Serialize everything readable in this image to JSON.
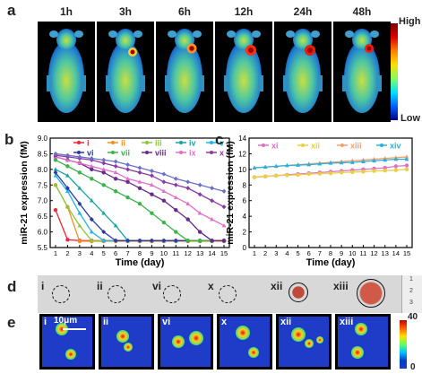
{
  "panel_a": {
    "letter": "a",
    "timepoints": [
      "1h",
      "3h",
      "6h",
      "12h",
      "24h",
      "48h"
    ],
    "colorbar": {
      "high": "High",
      "low": "Low"
    }
  },
  "panel_b": {
    "letter": "b",
    "chart_data": {
      "type": "line",
      "ylabel": "miR-21 expression (fM)",
      "xlabel": "Time (day)",
      "x": [
        1,
        2,
        3,
        4,
        5,
        6,
        7,
        8,
        9,
        10,
        11,
        12,
        13,
        14,
        15
      ],
      "xticks": [
        "1",
        "2",
        "3",
        "4",
        "5",
        "6",
        "7",
        "8",
        "9",
        "10",
        "11",
        "12",
        "13",
        "14",
        "15"
      ],
      "ylim": [
        5.5,
        9.0
      ],
      "yticks": [
        "5.5",
        "6.0",
        "6.5",
        "7.0",
        "7.5",
        "8.0",
        "8.5",
        "9.0"
      ],
      "series": [
        {
          "name": "i",
          "color": "#e8293a",
          "values": [
            6.7,
            5.75,
            5.72,
            5.72,
            5.72,
            5.72,
            5.72,
            5.72,
            5.72,
            5.72,
            5.72,
            5.72,
            5.72,
            5.72,
            5.72
          ]
        },
        {
          "name": "ii",
          "color": "#f0901e",
          "values": [
            7.5,
            6.8,
            5.7,
            5.7,
            5.7,
            5.7,
            5.7,
            5.7,
            5.7,
            5.7,
            5.7,
            5.7,
            5.7,
            5.7,
            5.7
          ]
        },
        {
          "name": "iii",
          "color": "#8cc63e",
          "values": [
            7.5,
            6.8,
            6.2,
            5.72,
            5.72,
            5.72,
            5.72,
            5.72,
            5.72,
            5.72,
            5.72,
            5.72,
            5.72,
            5.72,
            5.72
          ]
        },
        {
          "name": "iv",
          "color": "#1aa3a3",
          "values": [
            8.0,
            7.8,
            7.4,
            7.0,
            6.6,
            6.2,
            5.72,
            5.72,
            5.72,
            5.72,
            5.72,
            5.72,
            5.72,
            5.72,
            5.72
          ]
        },
        {
          "name": "v",
          "color": "#22b4e6",
          "values": [
            7.8,
            7.3,
            6.6,
            6.0,
            5.72,
            5.72,
            5.72,
            5.72,
            5.72,
            5.72,
            5.72,
            5.72,
            5.72,
            5.72,
            5.72
          ]
        },
        {
          "name": "vi",
          "color": "#2a3aa0",
          "values": [
            7.9,
            7.4,
            6.9,
            6.4,
            6.0,
            5.72,
            5.72,
            5.72,
            5.72,
            5.72,
            5.72,
            5.72,
            5.72,
            5.72,
            5.72
          ]
        },
        {
          "name": "vii",
          "color": "#3cb44b",
          "values": [
            8.3,
            8.1,
            7.9,
            7.7,
            7.5,
            7.3,
            7.1,
            6.9,
            6.6,
            6.3,
            6.0,
            5.72,
            5.72,
            5.72,
            5.72
          ]
        },
        {
          "name": "viii",
          "color": "#6a2a8a",
          "values": [
            8.4,
            8.3,
            8.2,
            8.0,
            7.9,
            7.7,
            7.6,
            7.4,
            7.2,
            7.0,
            6.7,
            6.4,
            6.0,
            5.72,
            5.72
          ]
        },
        {
          "name": "ix",
          "color": "#e070c8",
          "values": [
            8.4,
            8.3,
            8.2,
            8.1,
            8.0,
            7.9,
            7.7,
            7.6,
            7.5,
            7.3,
            7.1,
            6.9,
            6.6,
            6.4,
            6.2
          ]
        },
        {
          "name": "x",
          "color": "#8a3aa0",
          "values": [
            8.45,
            8.4,
            8.35,
            8.3,
            8.2,
            8.1,
            8.0,
            7.9,
            7.8,
            7.6,
            7.5,
            7.4,
            7.2,
            7.0,
            6.8
          ]
        },
        {
          "name": "",
          "color": "#6a70c8",
          "values": [
            8.5,
            8.45,
            8.4,
            8.35,
            8.3,
            8.25,
            8.15,
            8.05,
            7.95,
            7.85,
            7.7,
            7.6,
            7.5,
            7.4,
            7.3
          ]
        }
      ],
      "legend_placement": "top-right"
    }
  },
  "panel_c": {
    "letter": "c",
    "chart_data": {
      "type": "line",
      "ylabel": "miR-21 expression (fM)",
      "xlabel": "Time (day)",
      "x": [
        1,
        2,
        3,
        4,
        5,
        6,
        7,
        8,
        9,
        10,
        11,
        12,
        13,
        14,
        15
      ],
      "xticks": [
        "1",
        "2",
        "3",
        "4",
        "5",
        "6",
        "7",
        "8",
        "9",
        "10",
        "11",
        "12",
        "13",
        "14",
        "15"
      ],
      "ylim": [
        0,
        14
      ],
      "yticks": [
        "0",
        "2",
        "4",
        "6",
        "8",
        "10",
        "12",
        "14"
      ],
      "series": [
        {
          "name": "xi",
          "color": "#e070c8",
          "values": [
            9.0,
            9.1,
            9.2,
            9.3,
            9.4,
            9.5,
            9.6,
            9.7,
            9.8,
            9.9,
            10.0,
            10.1,
            10.2,
            10.4,
            10.5
          ]
        },
        {
          "name": "xii",
          "color": "#e8d040",
          "values": [
            9.0,
            9.1,
            9.2,
            9.25,
            9.3,
            9.4,
            9.45,
            9.5,
            9.6,
            9.65,
            9.7,
            9.8,
            9.85,
            9.9,
            10.0
          ]
        },
        {
          "name": "xiii",
          "color": "#f0a070",
          "values": [
            10.2,
            10.3,
            10.4,
            10.5,
            10.6,
            10.7,
            10.8,
            10.9,
            11.0,
            11.1,
            11.2,
            11.3,
            11.4,
            11.5,
            11.6
          ]
        },
        {
          "name": "xiv",
          "color": "#2ab0d8",
          "values": [
            10.2,
            10.3,
            10.4,
            10.5,
            10.55,
            10.6,
            10.7,
            10.8,
            10.85,
            10.9,
            11.0,
            11.1,
            11.2,
            11.3,
            11.3
          ]
        }
      ],
      "legend_placement": "top"
    }
  },
  "panel_d": {
    "letter": "d",
    "labels": [
      "i",
      "ii",
      "vi",
      "x",
      "xii",
      "xiii"
    ],
    "ruler_marks": [
      "1",
      "2",
      "3"
    ]
  },
  "panel_e": {
    "letter": "e",
    "labels": [
      "i",
      "ii",
      "vi",
      "x",
      "xii",
      "xiii"
    ],
    "scale_bar": "10μm",
    "colorbar": {
      "max": "40",
      "min": "0"
    }
  }
}
